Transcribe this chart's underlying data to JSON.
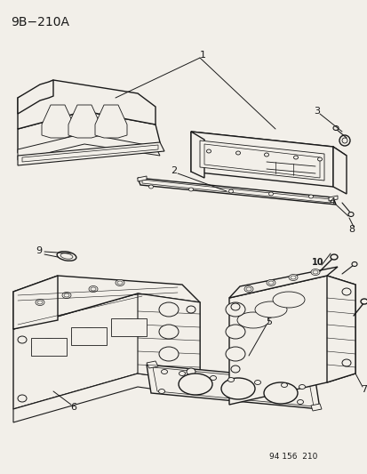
{
  "title": "9B−210A",
  "footer": "94 156  210",
  "bg_color": "#f2efe9",
  "line_color": "#1a1a1a",
  "fig_width": 4.14,
  "fig_height": 5.33,
  "dpi": 100
}
